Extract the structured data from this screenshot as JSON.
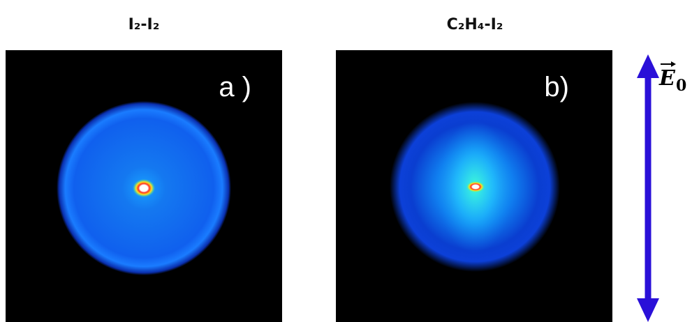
{
  "panels": [
    {
      "title": "I₂-I₂",
      "label": "a )"
    },
    {
      "title": "C₂H₄-I₂",
      "label": "b)"
    }
  ],
  "field_label": {
    "symbol": "E",
    "subscript": "0"
  }
}
